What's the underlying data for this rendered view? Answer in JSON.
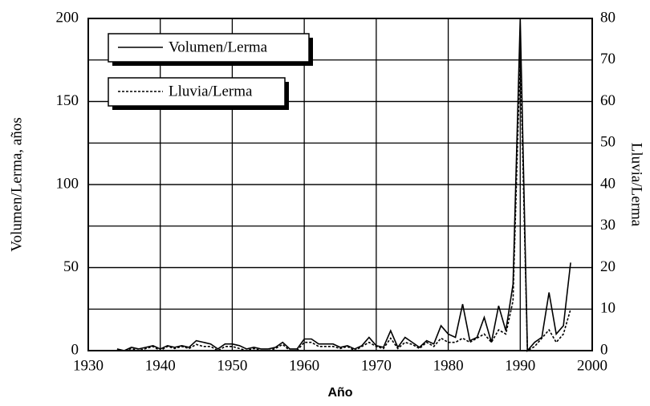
{
  "chart_data": {
    "type": "line",
    "x_label": "Año",
    "y_label": "Volumen/Lerma, años",
    "y2_label": "Lluvia/Lerma",
    "x": [
      1934,
      1935,
      1936,
      1937,
      1938,
      1939,
      1940,
      1941,
      1942,
      1943,
      1944,
      1945,
      1946,
      1947,
      1948,
      1949,
      1950,
      1951,
      1952,
      1953,
      1954,
      1955,
      1956,
      1957,
      1958,
      1959,
      1960,
      1961,
      1962,
      1963,
      1964,
      1965,
      1966,
      1967,
      1968,
      1969,
      1970,
      1971,
      1972,
      1973,
      1974,
      1975,
      1976,
      1977,
      1978,
      1979,
      1980,
      1981,
      1982,
      1983,
      1984,
      1985,
      1986,
      1987,
      1988,
      1989,
      1990,
      1991,
      1992,
      1993,
      1994,
      1995,
      1996,
      1997
    ],
    "series": [
      {
        "name": "Volumen/Lerma",
        "color": "#000000",
        "linestyle": "solid",
        "axis": "y",
        "values": [
          1,
          0,
          2,
          1,
          2,
          3,
          1,
          3,
          2,
          3,
          2,
          6,
          5,
          4,
          1,
          4,
          4,
          3,
          1,
          2,
          1,
          1,
          2,
          5,
          1,
          1,
          7,
          7,
          4,
          4,
          4,
          2,
          3,
          1,
          3,
          8,
          3,
          2,
          12,
          2,
          8,
          5,
          2,
          6,
          4,
          15,
          10,
          8,
          28,
          6,
          8,
          20,
          5,
          27,
          12,
          40,
          200,
          0,
          5,
          8,
          35,
          10,
          15,
          53
        ]
      },
      {
        "name": "Lluvia/Lerma",
        "color": "#000000",
        "linestyle": "dotted",
        "axis": "y2",
        "values": [
          0,
          0,
          0.5,
          0,
          0.5,
          1,
          0,
          1,
          0.5,
          1,
          0.5,
          1.5,
          1,
          1,
          0,
          1,
          1,
          0.5,
          0,
          0.5,
          0,
          0,
          0.5,
          1.5,
          0,
          0,
          2,
          2,
          1,
          1,
          1,
          0.5,
          1,
          0,
          1,
          2,
          1,
          0.5,
          3,
          0.5,
          2,
          1.5,
          0.5,
          2,
          1,
          3,
          2,
          2,
          3,
          2,
          3,
          4,
          2,
          5,
          4,
          12,
          72,
          0,
          1,
          3,
          5,
          2,
          4,
          10
        ]
      }
    ],
    "xlim": [
      1930,
      2000
    ],
    "xticks": [
      1930,
      1940,
      1950,
      1960,
      1970,
      1980,
      1990,
      2000
    ],
    "ylim": [
      0,
      200
    ],
    "yticks": [
      0,
      50,
      100,
      150,
      200
    ],
    "y2lim": [
      0,
      80
    ],
    "y2ticks": [
      0,
      10,
      20,
      30,
      40,
      50,
      60,
      70,
      80
    ],
    "grid": true,
    "legend": "upper left"
  }
}
